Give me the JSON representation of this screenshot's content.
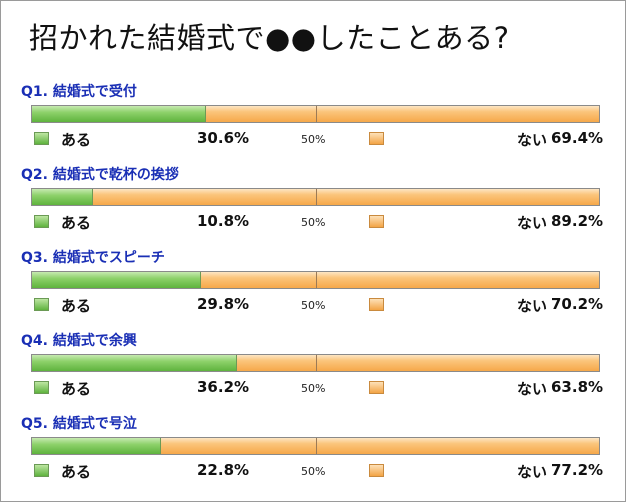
{
  "title": "招かれた結婚式で●●したことある?",
  "legend": {
    "yes": "ある",
    "no": "ない",
    "mid": "50%"
  },
  "colors": {
    "yes": "#5fb33e",
    "no": "#f6a84a",
    "question": "#1a2fb5"
  },
  "chart_data": {
    "type": "bar",
    "title": "招かれた結婚式で●●したことある?",
    "categories": [
      "Q1. 結婚式で受付",
      "Q2. 結婚式で乾杯の挨拶",
      "Q3. 結婚式でスピーチ",
      "Q4. 結婚式で余興",
      "Q5. 結婚式で号泣"
    ],
    "series": [
      {
        "name": "ある",
        "values": [
          30.6,
          10.8,
          29.8,
          36.2,
          22.8
        ]
      },
      {
        "name": "ない",
        "values": [
          69.4,
          89.2,
          70.2,
          63.8,
          77.2
        ]
      }
    ],
    "ylim": [
      0,
      100
    ],
    "mid_marker": 50,
    "stacked": true,
    "orientation": "horizontal"
  },
  "questions": [
    {
      "label": "Q1. 結婚式で受付",
      "yes_text": "30.6%",
      "no_text": "69.4%"
    },
    {
      "label": "Q2. 結婚式で乾杯の挨拶",
      "yes_text": "10.8%",
      "no_text": "89.2%"
    },
    {
      "label": "Q3. 結婚式でスピーチ",
      "yes_text": "29.8%",
      "no_text": "70.2%"
    },
    {
      "label": "Q4. 結婚式で余興",
      "yes_text": "36.2%",
      "no_text": "63.8%"
    },
    {
      "label": "Q5. 結婚式で号泣",
      "yes_text": "22.8%",
      "no_text": "77.2%"
    }
  ]
}
